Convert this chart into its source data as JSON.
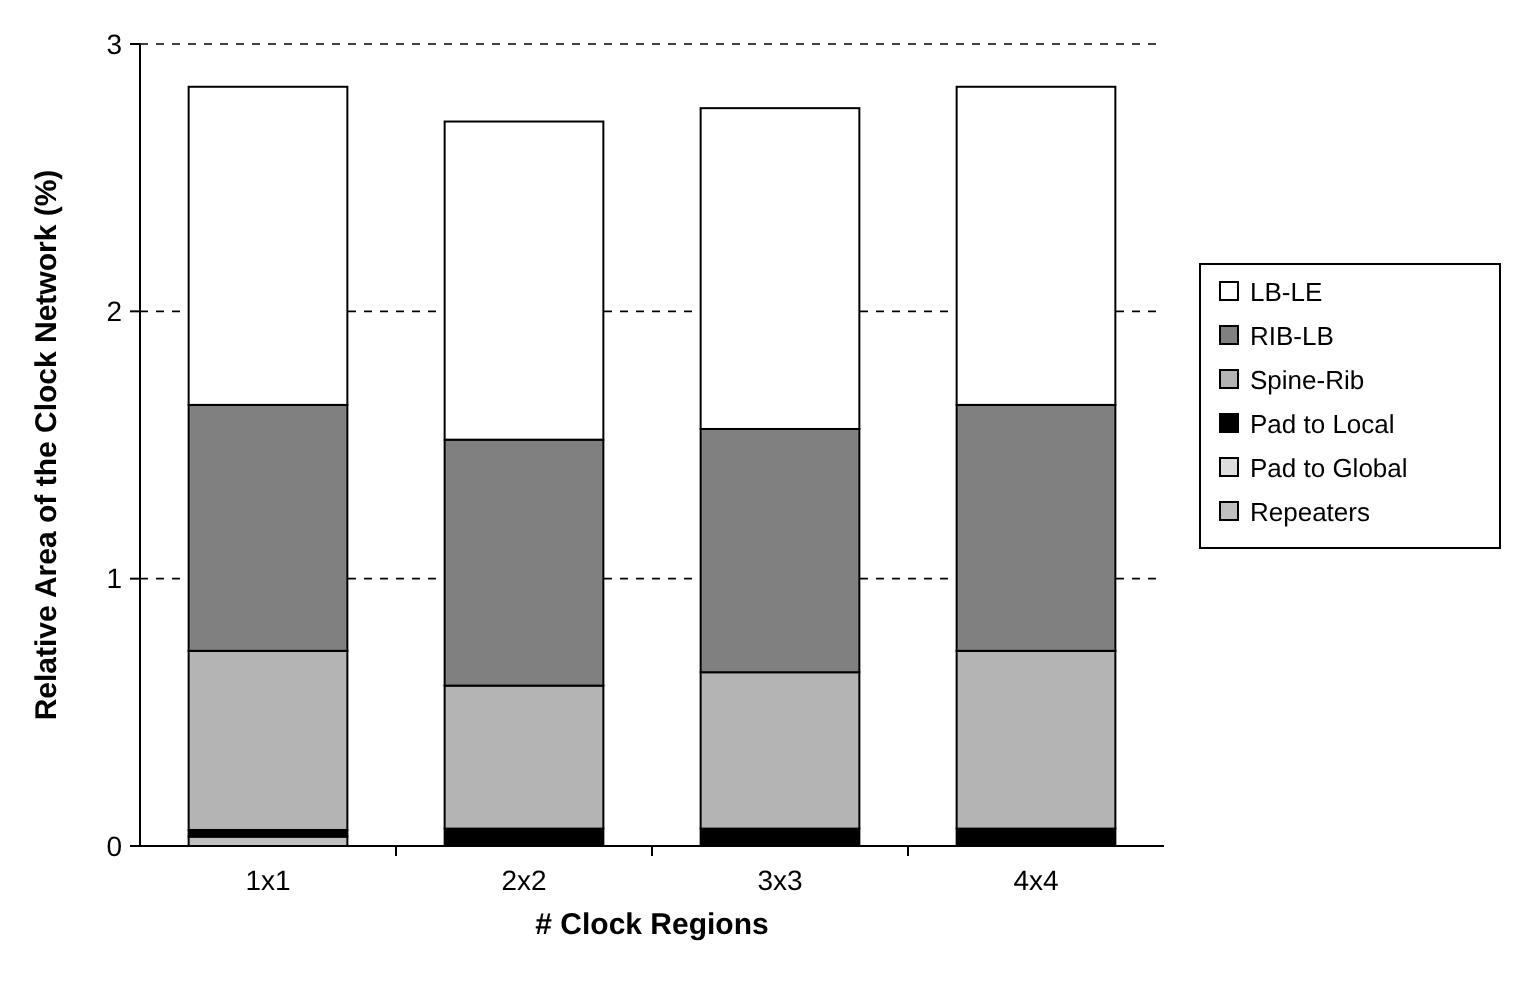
{
  "chart_data": {
    "type": "bar",
    "stacked": true,
    "xlabel": "# Clock Regions",
    "ylabel": "Relative Area of the Clock Network (%)",
    "categories": [
      "1x1",
      "2x2",
      "3x3",
      "4x4"
    ],
    "ylim": [
      0,
      3
    ],
    "yticks": [
      0,
      1,
      2,
      3
    ],
    "grid": "y",
    "legend": "right",
    "series": [
      {
        "name": "Repeaters",
        "color": "#c0c0c0",
        "values": [
          0.035,
          0,
          0,
          0
        ]
      },
      {
        "name": "Pad to Global",
        "color": "#dddddd",
        "values": [
          0,
          0,
          0,
          0
        ]
      },
      {
        "name": "Pad to Local",
        "color": "#000000",
        "values": [
          0.025,
          0.065,
          0.065,
          0.065
        ]
      },
      {
        "name": "Spine-Rib",
        "color": "#b4b4b4",
        "values": [
          0.67,
          0.535,
          0.585,
          0.665
        ]
      },
      {
        "name": "RIB-LB",
        "color": "#808080",
        "values": [
          0.92,
          0.92,
          0.91,
          0.92
        ]
      },
      {
        "name": "LB-LE",
        "color": "#ffffff",
        "values": [
          1.19,
          1.19,
          1.2,
          1.19
        ]
      }
    ]
  }
}
